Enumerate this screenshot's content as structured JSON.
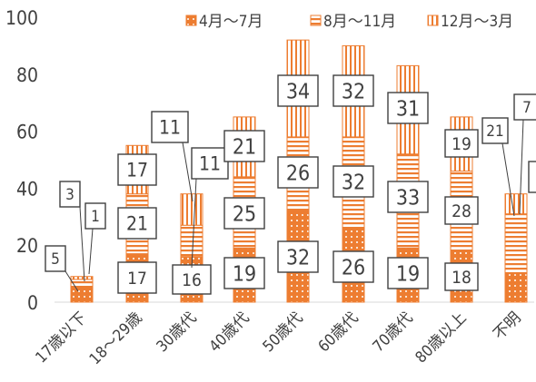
{
  "chart_data": {
    "type": "bar",
    "stacked": true,
    "categories": [
      "17歳以下",
      "18～29歳",
      "30歳代",
      "40歳代",
      "50歳代",
      "60歳代",
      "70歳代",
      "80歳以上",
      "不明"
    ],
    "series": [
      {
        "name": "4月～7月",
        "values": [
          5,
          17,
          16,
          19,
          32,
          26,
          19,
          18,
          10
        ],
        "color": "#ed7d31",
        "pattern": "dots"
      },
      {
        "name": "8月～11月",
        "values": [
          3,
          21,
          11,
          25,
          26,
          32,
          33,
          28,
          21
        ],
        "color": "#ed7d31",
        "pattern": "hlines"
      },
      {
        "name": "12月～3月",
        "values": [
          1,
          17,
          11,
          21,
          34,
          32,
          31,
          19,
          7
        ],
        "color": "#ed7d31",
        "pattern": "vlines"
      }
    ],
    "data_labels": [
      [
        "5",
        "3",
        "1"
      ],
      [
        "17",
        "21",
        "17"
      ],
      [
        "16",
        "11",
        "11"
      ],
      [
        "19",
        "25",
        "21"
      ],
      [
        "32",
        "26",
        "34"
      ],
      [
        "26",
        "32",
        "32"
      ],
      [
        "19",
        "33",
        "31"
      ],
      [
        "18",
        "28",
        "19"
      ],
      [
        "",
        "21",
        "7"
      ]
    ],
    "ylim": [
      0,
      100
    ],
    "yticks": [
      "0",
      "20",
      "40",
      "60",
      "80",
      "100"
    ],
    "grid": false,
    "legend": "top"
  }
}
